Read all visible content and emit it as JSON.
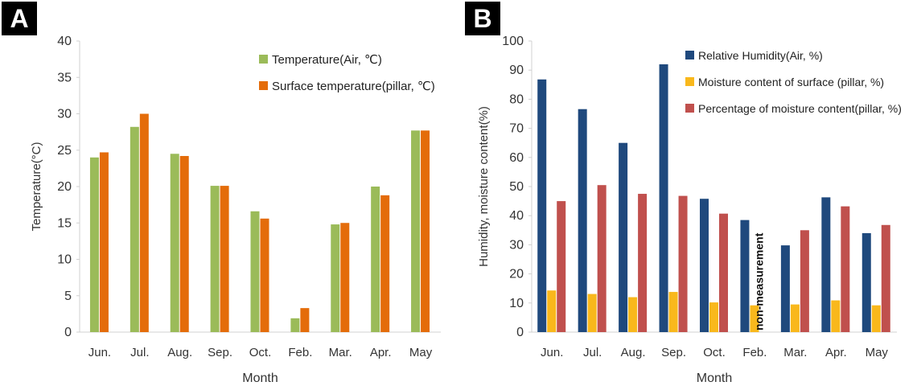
{
  "chart_data": [
    {
      "panel": "A",
      "type": "bar",
      "title": "",
      "xlabel": "Month",
      "ylabel": "Temperature(°C)",
      "ylim": [
        0,
        40
      ],
      "yticks": [
        0,
        5,
        10,
        15,
        20,
        25,
        30,
        35,
        40
      ],
      "grid": false,
      "legend_position": "top-right",
      "categories": [
        "Jun.",
        "Jul.",
        "Aug.",
        "Sep.",
        "Oct.",
        "Feb.",
        "Mar.",
        "Apr.",
        "May"
      ],
      "series": [
        {
          "name": "Temperature(Air, ℃)",
          "color": "#9bbb59",
          "values": [
            24,
            28.2,
            24.5,
            20.1,
            16.6,
            1.9,
            14.8,
            20,
            27.7
          ]
        },
        {
          "name": "Surface temperature(pillar, ℃)",
          "color": "#e46c0a",
          "values": [
            24.7,
            30,
            24.2,
            20.1,
            15.6,
            3.3,
            15,
            18.8,
            27.7
          ]
        }
      ]
    },
    {
      "panel": "B",
      "type": "bar",
      "title": "",
      "xlabel": "Month",
      "ylabel": "Humidity, moisture content(%)",
      "ylim": [
        0,
        100
      ],
      "yticks": [
        0,
        10,
        20,
        30,
        40,
        50,
        60,
        70,
        80,
        90,
        100
      ],
      "grid": false,
      "legend_position": "top-right",
      "categories": [
        "Jun.",
        "Jul.",
        "Aug.",
        "Sep.",
        "Oct.",
        "Feb.",
        "Mar.",
        "Apr.",
        "May"
      ],
      "series": [
        {
          "name": "Relative Humidity(Air, %)",
          "color": "#1f497d",
          "values": [
            86.8,
            76.6,
            65,
            92,
            45.8,
            38.5,
            29.8,
            46.3,
            34
          ]
        },
        {
          "name": "Moisture content of surface (pillar, %)",
          "color": "#f9b81c",
          "values": [
            14.3,
            13.1,
            12,
            13.8,
            10.2,
            9.2,
            9.5,
            10.9,
            9.2
          ]
        },
        {
          "name": "Percentage of moisture content(pillar, %)",
          "color": "#c0504d",
          "values": [
            45,
            50.5,
            47.5,
            46.8,
            40.7,
            null,
            35,
            43.2,
            36.8
          ]
        }
      ],
      "annotation": {
        "text": "non-measurement",
        "category": "Feb."
      }
    }
  ]
}
